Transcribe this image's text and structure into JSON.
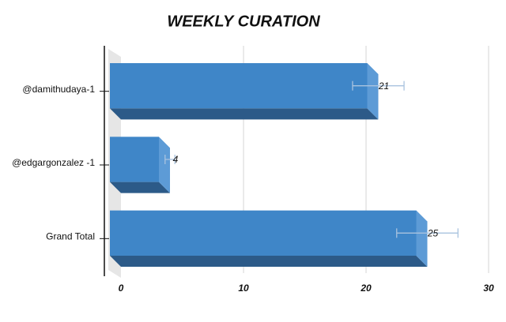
{
  "chart_data": {
    "type": "hbar3d",
    "title": "WEEKLY CURATION",
    "categories": [
      "@damithudaya-1",
      "@edgargonzalez -1",
      "Grand Total"
    ],
    "values": [
      21,
      4,
      25
    ],
    "errors": [
      2.1,
      0.4,
      2.5
    ],
    "color": "#3f86c8",
    "error_color": "#a9c3df",
    "xlim": [
      0,
      30
    ],
    "xticks": [
      0,
      10,
      20,
      30
    ],
    "grid": true
  }
}
